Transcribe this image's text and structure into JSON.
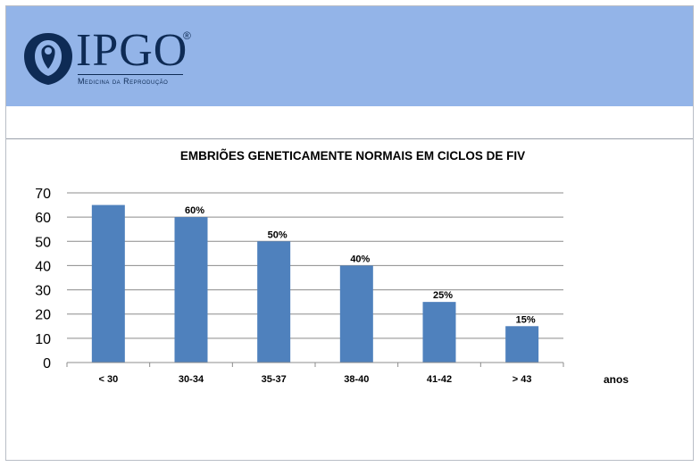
{
  "brand": {
    "name": "IPGO",
    "registered": "®",
    "tagline": "Medicina da Reprodução",
    "primary_color": "#0e2b55",
    "header_color": "#93b4e8"
  },
  "chart_data": {
    "type": "bar",
    "title": "EMBRIÕES GENETICAMENTE NORMAIS EM CICLOS DE FIV",
    "categories": [
      "< 30",
      "30-34",
      "35-37",
      "38-40",
      "41-42",
      "> 43"
    ],
    "values": [
      65,
      60,
      50,
      40,
      25,
      15
    ],
    "data_labels": [
      "",
      "60%",
      "50%",
      "40%",
      "25%",
      "15%"
    ],
    "xlabel": "anos",
    "ylabel": "",
    "ylim": [
      0,
      70
    ],
    "yticks": [
      "0",
      "10",
      "20",
      "30",
      "40",
      "50",
      "60",
      "70"
    ],
    "grid": true,
    "legend": "none",
    "bar_color": "#4f81bd",
    "grid_color": "#8c8c8c"
  }
}
